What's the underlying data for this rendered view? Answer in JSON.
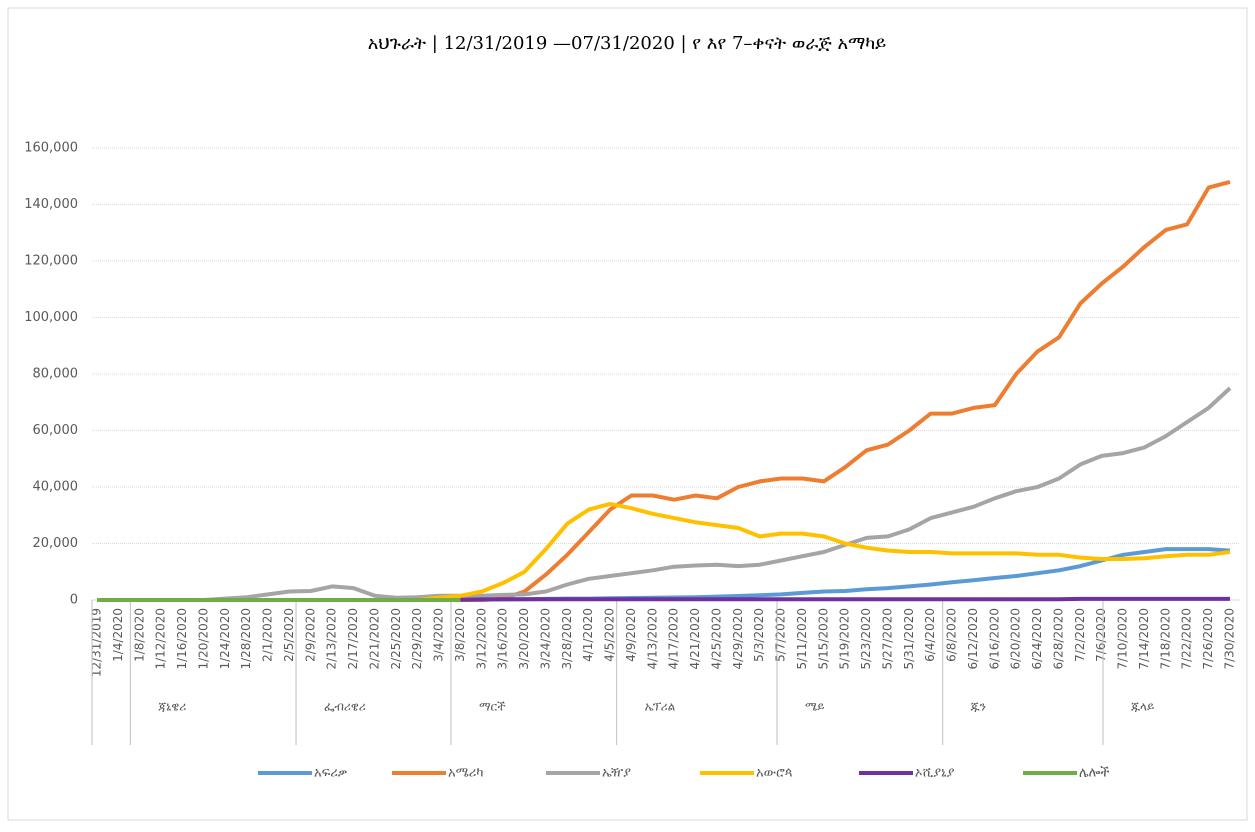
{
  "chart_data": {
    "type": "line",
    "title": "አህጉራት | 12/31/2019 —07/31/2020 | የ እየ 7–ቀናት ወራጅ አማካይ",
    "x": [
      "12/31/2019",
      "1/4/2020",
      "1/8/2020",
      "1/12/2020",
      "1/16/2020",
      "1/20/2020",
      "1/24/2020",
      "1/28/2020",
      "2/1/2020",
      "2/5/2020",
      "2/9/2020",
      "2/13/2020",
      "2/17/2020",
      "2/21/2020",
      "2/25/2020",
      "2/29/2020",
      "3/4/2020",
      "3/8/2020",
      "3/12/2020",
      "3/16/2020",
      "3/20/2020",
      "3/24/2020",
      "3/28/2020",
      "4/1/2020",
      "4/5/2020",
      "4/9/2020",
      "4/13/2020",
      "4/17/2020",
      "4/21/2020",
      "4/25/2020",
      "4/29/2020",
      "5/3/2020",
      "5/7/2020",
      "5/11/2020",
      "5/15/2020",
      "5/19/2020",
      "5/23/2020",
      "5/27/2020",
      "5/31/2020",
      "6/4/2020",
      "6/8/2020",
      "6/12/2020",
      "6/16/2020",
      "6/20/2020",
      "6/24/2020",
      "6/28/2020",
      "7/2/2020",
      "7/6/2020",
      "7/10/2020",
      "7/14/2020",
      "7/18/2020",
      "7/22/2020",
      "7/26/2020",
      "7/30/2020"
    ],
    "months": [
      "ጃኒዌሪ",
      "ፌብሪዌሪ",
      "ማርች",
      "ኤፕሪል",
      "ሜይ",
      "ጁን",
      "ጁላይ"
    ],
    "series": [
      {
        "name": "አፍሪቃ",
        "color": "#5b9bd5",
        "values": [
          0,
          0,
          0,
          0,
          0,
          0,
          0,
          0,
          0,
          0,
          0,
          0,
          0,
          0,
          0,
          0,
          0,
          0,
          100,
          200,
          300,
          400,
          500,
          500,
          600,
          700,
          800,
          900,
          1000,
          1200,
          1400,
          1700,
          2000,
          2500,
          3000,
          3200,
          3800,
          4200,
          4800,
          5500,
          6300,
          7000,
          7800,
          8500,
          9500,
          10500,
          12000,
          14000,
          16000,
          17000,
          18000,
          18000,
          18000,
          17500
        ]
      },
      {
        "name": "አሜሪካ",
        "color": "#ed7d31",
        "values": [
          0,
          0,
          0,
          0,
          0,
          0,
          0,
          0,
          0,
          0,
          0,
          0,
          0,
          0,
          0,
          0,
          0,
          0,
          0,
          500,
          3000,
          9000,
          16000,
          24000,
          32000,
          37000,
          37000,
          35500,
          37000,
          36000,
          40000,
          42000,
          43000,
          43000,
          42000,
          47000,
          53000,
          55000,
          60000,
          66000,
          66000,
          68000,
          69000,
          80000,
          88000,
          93000,
          105000,
          112000,
          118000,
          125000,
          131000,
          133000,
          146000,
          148000
        ]
      },
      {
        "name": "ኤዥያ",
        "color": "#a5a5a5",
        "values": [
          0,
          0,
          0,
          0,
          0,
          0,
          500,
          1000,
          2000,
          3000,
          3200,
          4800,
          4200,
          1500,
          800,
          1000,
          1500,
          1500,
          1500,
          1800,
          2000,
          3000,
          5500,
          7500,
          8500,
          9500,
          10500,
          11800,
          12200,
          12500,
          12000,
          12500,
          14000,
          15500,
          17000,
          19500,
          22000,
          22500,
          25000,
          29000,
          31000,
          33000,
          36000,
          38500,
          40000,
          43000,
          48000,
          51000,
          52000,
          54000,
          58000,
          63000,
          68000,
          75000
        ]
      },
      {
        "name": "አውሮጳ",
        "color": "#ffc000",
        "values": [
          0,
          0,
          0,
          0,
          0,
          0,
          0,
          0,
          0,
          0,
          0,
          0,
          0,
          0,
          0,
          0,
          800,
          1500,
          3000,
          6000,
          10000,
          18000,
          27000,
          32000,
          34000,
          32500,
          30500,
          29000,
          27500,
          26500,
          25500,
          22500,
          23500,
          23500,
          22500,
          20000,
          18500,
          17500,
          17000,
          17000,
          16500,
          16500,
          16500,
          16500,
          16000,
          16000,
          15000,
          14500,
          14500,
          14800,
          15500,
          16000,
          16000,
          17000
        ]
      },
      {
        "name": "ኦሺያኒያ",
        "color": "#7030a0",
        "values": [
          null,
          null,
          null,
          null,
          null,
          null,
          null,
          null,
          null,
          null,
          null,
          null,
          null,
          null,
          null,
          null,
          null,
          100,
          200,
          300,
          300,
          300,
          300,
          300,
          300,
          300,
          300,
          300,
          300,
          300,
          300,
          300,
          300,
          300,
          300,
          300,
          300,
          300,
          300,
          300,
          300,
          300,
          300,
          300,
          300,
          300,
          400,
          400,
          400,
          400,
          400,
          400,
          400,
          400
        ]
      },
      {
        "name": "ሌሎች",
        "color": "#70ad47",
        "values": [
          0,
          0,
          0,
          0,
          0,
          0,
          0,
          0,
          0,
          0,
          0,
          0,
          0,
          0,
          0,
          0,
          0,
          0,
          null,
          null,
          null,
          null,
          null,
          null,
          null,
          null,
          null,
          null,
          null,
          null,
          null,
          null,
          null,
          null,
          null,
          null,
          null,
          null,
          null,
          null,
          null,
          null,
          null,
          null,
          null,
          null,
          null,
          null,
          null,
          null,
          null,
          null,
          null,
          null
        ]
      }
    ],
    "ylim": [
      0,
      160000
    ],
    "yticks": [
      0,
      {
        "value": 20000,
        "label": "20,000"
      },
      {
        "value": 40000,
        "label": "40,000"
      },
      {
        "value": 60000,
        "label": "60,000"
      },
      {
        "value": 80000,
        "label": "80,000"
      },
      {
        "value": 100000,
        "label": "100,000"
      },
      {
        "value": 120000,
        "label": "120,000"
      },
      {
        "value": 140000,
        "label": "140,000"
      },
      {
        "value": 160000,
        "label": "160,000"
      }
    ],
    "grid": true,
    "legend": "bottom"
  }
}
